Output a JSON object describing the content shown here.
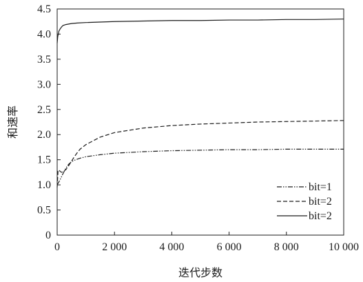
{
  "chart_data": {
    "type": "line",
    "title": "",
    "xlabel": "迭代步数",
    "ylabel": "和速率",
    "xlim": [
      0,
      10000
    ],
    "ylim": [
      0,
      4.5
    ],
    "x_ticks": [
      0,
      2000,
      4000,
      6000,
      8000,
      10000
    ],
    "x_tick_labels": [
      "0",
      "2 000",
      "4 000",
      "6 000",
      "8 000",
      "10 000"
    ],
    "y_ticks": [
      0,
      0.5,
      1.0,
      1.5,
      2.0,
      2.5,
      3.0,
      3.5,
      4.0,
      4.5
    ],
    "y_tick_labels": [
      "0",
      "0.5",
      "1.0",
      "1.5",
      "2.0",
      "2.5",
      "3.0",
      "3.5",
      "4.0",
      "4.5"
    ],
    "grid": false,
    "legend_position": "lower-right",
    "series": [
      {
        "name": "bit=1",
        "dash": "dashdot",
        "x": [
          0,
          30,
          60,
          100,
          150,
          200,
          300,
          400,
          500,
          600,
          800,
          1000,
          1500,
          2000,
          3000,
          4000,
          5000,
          6000,
          7000,
          8000,
          9000,
          10000
        ],
        "y": [
          1.0,
          1.03,
          1.06,
          1.1,
          1.16,
          1.22,
          1.33,
          1.41,
          1.46,
          1.49,
          1.53,
          1.56,
          1.6,
          1.63,
          1.66,
          1.68,
          1.69,
          1.7,
          1.7,
          1.71,
          1.71,
          1.71
        ]
      },
      {
        "name": "bit=2",
        "dash": "dashed",
        "x": [
          0,
          30,
          60,
          100,
          150,
          200,
          300,
          400,
          500,
          600,
          700,
          800,
          1000,
          1500,
          2000,
          3000,
          4000,
          5000,
          6000,
          7000,
          8000,
          9000,
          10000
        ],
        "y": [
          0.95,
          1.28,
          1.3,
          1.27,
          1.25,
          1.26,
          1.3,
          1.38,
          1.47,
          1.56,
          1.64,
          1.71,
          1.8,
          1.95,
          2.04,
          2.13,
          2.18,
          2.21,
          2.23,
          2.25,
          2.26,
          2.27,
          2.28
        ]
      },
      {
        "name": "bit=2",
        "dash": "solid",
        "x": [
          0,
          20,
          40,
          60,
          100,
          150,
          200,
          300,
          500,
          700,
          1000,
          2000,
          3000,
          4000,
          5000,
          6000,
          7000,
          8000,
          9000,
          10000
        ],
        "y": [
          3.82,
          3.95,
          4.0,
          4.06,
          4.1,
          4.14,
          4.17,
          4.19,
          4.21,
          4.22,
          4.23,
          4.25,
          4.26,
          4.27,
          4.27,
          4.28,
          4.28,
          4.29,
          4.29,
          4.3
        ]
      }
    ]
  }
}
